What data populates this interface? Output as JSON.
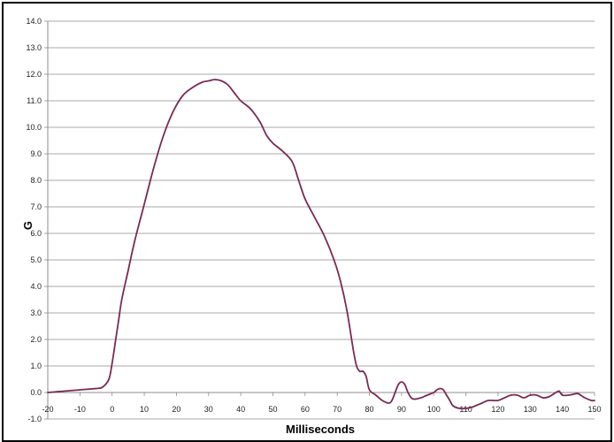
{
  "chart_data": {
    "type": "line",
    "title": "",
    "xlabel": "Milliseconds",
    "ylabel": "G",
    "xlim": [
      -20,
      150
    ],
    "ylim": [
      -1.0,
      14.0
    ],
    "xticks": [
      "-20",
      "-10",
      "0",
      "10",
      "20",
      "30",
      "40",
      "50",
      "60",
      "70",
      "80",
      "90",
      "100",
      "110",
      "120",
      "130",
      "140",
      "150"
    ],
    "yticks": [
      "-1.0",
      "0.0",
      "1.0",
      "2.0",
      "3.0",
      "4.0",
      "5.0",
      "6.0",
      "7.0",
      "8.0",
      "9.0",
      "10.0",
      "11.0",
      "12.0",
      "13.0",
      "14.0"
    ],
    "grid": "horizontal",
    "legend": "none",
    "colors": {
      "line": "#7a2a55",
      "grid": "#8c8c8c",
      "axis": "#8c8c8c"
    },
    "series": [
      {
        "x": [
          -20,
          -15,
          -10,
          -5,
          -3,
          -1,
          0,
          1,
          2,
          3,
          5,
          7,
          10,
          13,
          16,
          19,
          22,
          25,
          28,
          30,
          32,
          34,
          36,
          38,
          40,
          43,
          46,
          48,
          50,
          53,
          56,
          58,
          60,
          63,
          66,
          69,
          71,
          73,
          75,
          76,
          77,
          78,
          79,
          80,
          82,
          84,
          86,
          87,
          88,
          89,
          90,
          91,
          92,
          93,
          94,
          96,
          98,
          100,
          101,
          102,
          103,
          104,
          105,
          106,
          108,
          110,
          112,
          113,
          115,
          117,
          120,
          122,
          124,
          126,
          128,
          130,
          132,
          134,
          136,
          138,
          139,
          140,
          142,
          144,
          145,
          147,
          149,
          150
        ],
        "y": [
          0.0,
          0.05,
          0.1,
          0.15,
          0.2,
          0.5,
          1.1,
          1.9,
          2.7,
          3.5,
          4.6,
          5.7,
          7.1,
          8.5,
          9.7,
          10.6,
          11.2,
          11.5,
          11.7,
          11.75,
          11.8,
          11.75,
          11.6,
          11.3,
          11.0,
          10.7,
          10.2,
          9.7,
          9.4,
          9.1,
          8.7,
          8.0,
          7.3,
          6.6,
          5.9,
          5.0,
          4.2,
          3.1,
          1.6,
          1.0,
          0.8,
          0.8,
          0.6,
          0.1,
          -0.1,
          -0.3,
          -0.4,
          -0.3,
          0.0,
          0.3,
          0.4,
          0.3,
          0.0,
          -0.2,
          -0.25,
          -0.2,
          -0.1,
          0.0,
          0.1,
          0.15,
          0.1,
          -0.1,
          -0.3,
          -0.5,
          -0.6,
          -0.6,
          -0.55,
          -0.5,
          -0.4,
          -0.3,
          -0.3,
          -0.2,
          -0.1,
          -0.1,
          -0.2,
          -0.1,
          -0.1,
          -0.2,
          -0.15,
          0.0,
          0.05,
          -0.1,
          -0.1,
          -0.05,
          -0.05,
          -0.2,
          -0.3,
          -0.3
        ]
      }
    ]
  }
}
